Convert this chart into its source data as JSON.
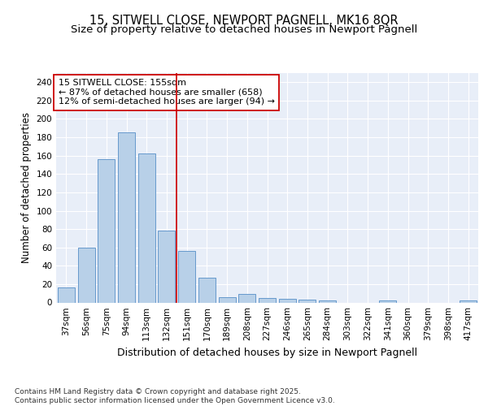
{
  "title_line1": "15, SITWELL CLOSE, NEWPORT PAGNELL, MK16 8QR",
  "title_line2": "Size of property relative to detached houses in Newport Pagnell",
  "xlabel": "Distribution of detached houses by size in Newport Pagnell",
  "ylabel": "Number of detached properties",
  "categories": [
    "37sqm",
    "56sqm",
    "75sqm",
    "94sqm",
    "113sqm",
    "132sqm",
    "151sqm",
    "170sqm",
    "189sqm",
    "208sqm",
    "227sqm",
    "246sqm",
    "265sqm",
    "284sqm",
    "303sqm",
    "322sqm",
    "341sqm",
    "360sqm",
    "379sqm",
    "398sqm",
    "417sqm"
  ],
  "values": [
    16,
    60,
    156,
    185,
    162,
    78,
    56,
    27,
    6,
    9,
    5,
    4,
    3,
    2,
    0,
    0,
    2,
    0,
    0,
    0,
    2
  ],
  "bar_color": "#b8d0e8",
  "bar_edge_color": "#6699cc",
  "background_color": "#e8eef8",
  "grid_color": "#ffffff",
  "vline_color": "#cc0000",
  "box_edge_color": "#cc0000",
  "annotation_line1": "15 SITWELL CLOSE: 155sqm",
  "annotation_line2": "← 87% of detached houses are smaller (658)",
  "annotation_line3": "12% of semi-detached houses are larger (94) →",
  "yticks": [
    0,
    20,
    40,
    60,
    80,
    100,
    120,
    140,
    160,
    180,
    200,
    220,
    240
  ],
  "ylim": [
    0,
    250
  ],
  "footer_text": "Contains HM Land Registry data © Crown copyright and database right 2025.\nContains public sector information licensed under the Open Government Licence v3.0.",
  "title_fontsize": 10.5,
  "subtitle_fontsize": 9.5,
  "ylabel_fontsize": 8.5,
  "xlabel_fontsize": 9,
  "tick_fontsize": 7.5,
  "annotation_fontsize": 8,
  "footer_fontsize": 6.5
}
